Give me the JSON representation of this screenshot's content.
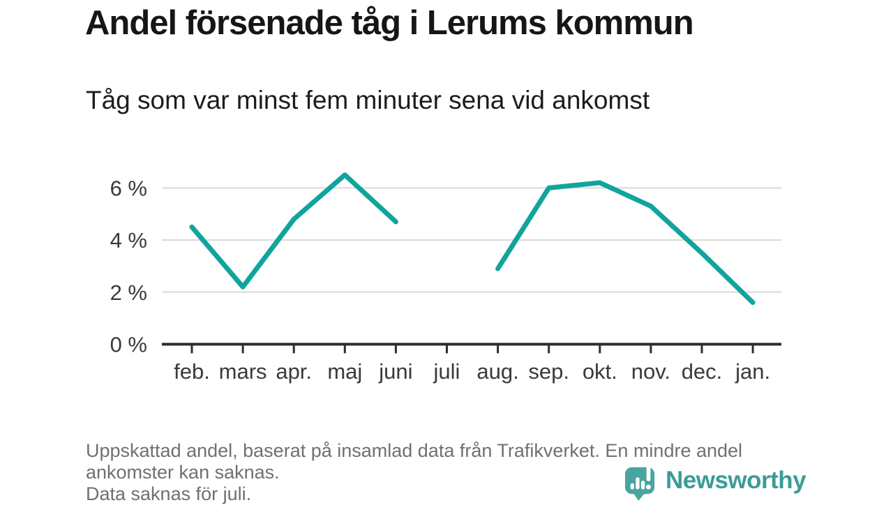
{
  "header": {
    "title": "Andel försenade tåg i Lerums kommun",
    "subtitle": "Tåg som var minst fem minuter sena vid ankomst"
  },
  "footnote": {
    "lines": [
      "Uppskattad andel, baserat på insamlad data från Trafikverket. En mindre andel",
      "ankomster kan saknas.",
      "Data saknas för juli."
    ]
  },
  "logo": {
    "brand_name": "Newsworthy",
    "icon": "bar-chart-speech-bubble-icon"
  },
  "colors": {
    "line": "#10a49c",
    "grid": "#d9d9d9",
    "axis": "#2d2d2d",
    "tick_label": "#3a3a3a",
    "title_text": "#161616",
    "subtitle_text": "#1c1c1c",
    "footnote_text": "#707070",
    "brand_icon": "#4aa49f",
    "brand_text": "#3b9c97",
    "background": "#ffffff"
  },
  "chart_data": {
    "type": "line",
    "title": "Andel försenade tåg i Lerums kommun",
    "subtitle": "Tåg som var minst fem minuter sena vid ankomst",
    "unit": "%",
    "x": [
      "feb.",
      "mars",
      "apr.",
      "maj",
      "juni",
      "juli",
      "aug.",
      "sep.",
      "okt.",
      "nov.",
      "dec.",
      "jan."
    ],
    "series": [
      {
        "name": "Andel försenade tåg (%)",
        "values": [
          4.5,
          2.2,
          4.8,
          6.5,
          4.7,
          null,
          2.9,
          6.0,
          6.2,
          5.3,
          3.5,
          1.6
        ]
      }
    ],
    "missing_x": [
      "juli"
    ],
    "y_ticks": [
      {
        "value": 0,
        "label": "0 %"
      },
      {
        "value": 2,
        "label": "2 %"
      },
      {
        "value": 4,
        "label": "4 %"
      },
      {
        "value": 6,
        "label": "6 %"
      }
    ],
    "ylim": [
      0,
      7.1
    ],
    "xlabel": "",
    "ylabel": "",
    "grid": "horizontal-only",
    "legend": "none"
  }
}
